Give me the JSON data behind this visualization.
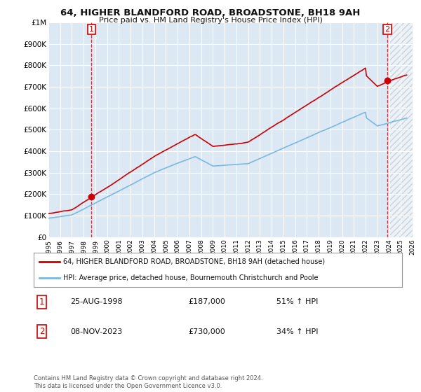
{
  "title": "64, HIGHER BLANDFORD ROAD, BROADSTONE, BH18 9AH",
  "subtitle": "Price paid vs. HM Land Registry's House Price Index (HPI)",
  "ylim": [
    0,
    1000000
  ],
  "yticks": [
    0,
    100000,
    200000,
    300000,
    400000,
    500000,
    600000,
    700000,
    800000,
    900000,
    1000000
  ],
  "ytick_labels": [
    "£0",
    "£100K",
    "£200K",
    "£300K",
    "£400K",
    "£500K",
    "£600K",
    "£700K",
    "£800K",
    "£900K",
    "£1M"
  ],
  "background_color": "#ffffff",
  "plot_bg_color": "#dce9f5",
  "grid_color": "#ffffff",
  "sale1_x": 1998.65,
  "sale1_y": 187000,
  "sale2_x": 2023.85,
  "sale2_y": 730000,
  "red_color": "#cc0000",
  "blue_color": "#7ab8e0",
  "legend_label1": "64, HIGHER BLANDFORD ROAD, BROADSTONE, BH18 9AH (detached house)",
  "legend_label2": "HPI: Average price, detached house, Bournemouth Christchurch and Poole",
  "table_row1": [
    "1",
    "25-AUG-1998",
    "£187,000",
    "51% ↑ HPI"
  ],
  "table_row2": [
    "2",
    "08-NOV-2023",
    "£730,000",
    "34% ↑ HPI"
  ],
  "footnote": "Contains HM Land Registry data © Crown copyright and database right 2024.\nThis data is licensed under the Open Government Licence v3.0.",
  "xmin": 1995,
  "xmax": 2026,
  "hatch_start": 2024
}
